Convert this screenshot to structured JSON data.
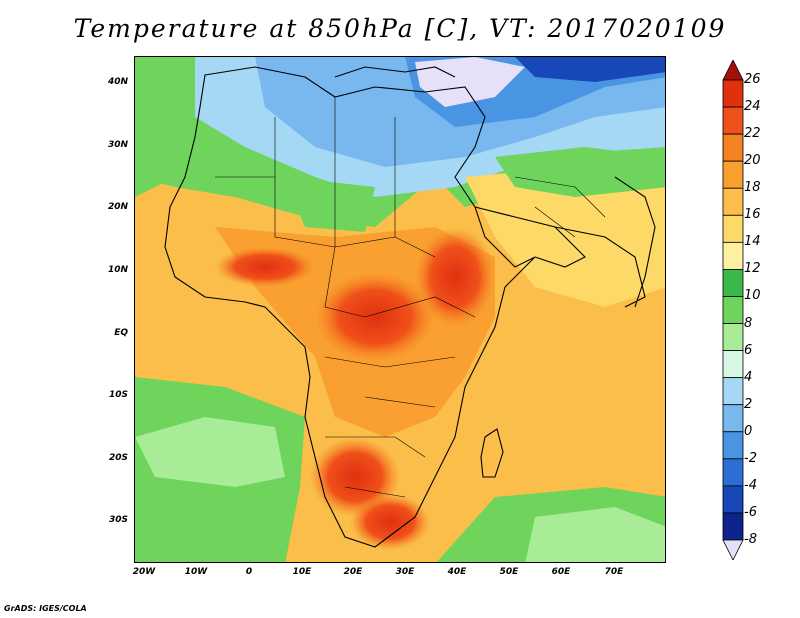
{
  "title": "Temperature at 850hPa [C], VT: 2017020109",
  "footer": "GrADS: IGES/COLA",
  "map": {
    "lat_labels": [
      "40N",
      "30N",
      "20N",
      "10N",
      "EQ",
      "10S",
      "20S",
      "30S"
    ],
    "lon_labels": [
      "20W",
      "10W",
      "0",
      "10E",
      "20E",
      "30E",
      "40E",
      "50E",
      "60E",
      "70E"
    ]
  },
  "colorbar": {
    "labels": [
      "26",
      "24",
      "22",
      "20",
      "18",
      "16",
      "14",
      "12",
      "10",
      "8",
      "6",
      "4",
      "2",
      "0",
      "-2",
      "-4",
      "-6",
      "-8"
    ],
    "colors": [
      "#a50f0a",
      "#e03010",
      "#f0501a",
      "#f58220",
      "#f9a030",
      "#fbbe4a",
      "#fdd968",
      "#fdf0a0",
      "#3cb84a",
      "#6ed45c",
      "#a8ec98",
      "#d8f6e4",
      "#a4d8f4",
      "#78b8ee",
      "#4a94e4",
      "#2c6ed6",
      "#1848b8",
      "#0c248c",
      "#e6e0f8"
    ]
  },
  "legend_colors": {
    "ocean_green": "#6ed45c",
    "land_orange": "#f9a030",
    "hot_red": "#e03010",
    "cold_blue": "#78b8ee"
  }
}
